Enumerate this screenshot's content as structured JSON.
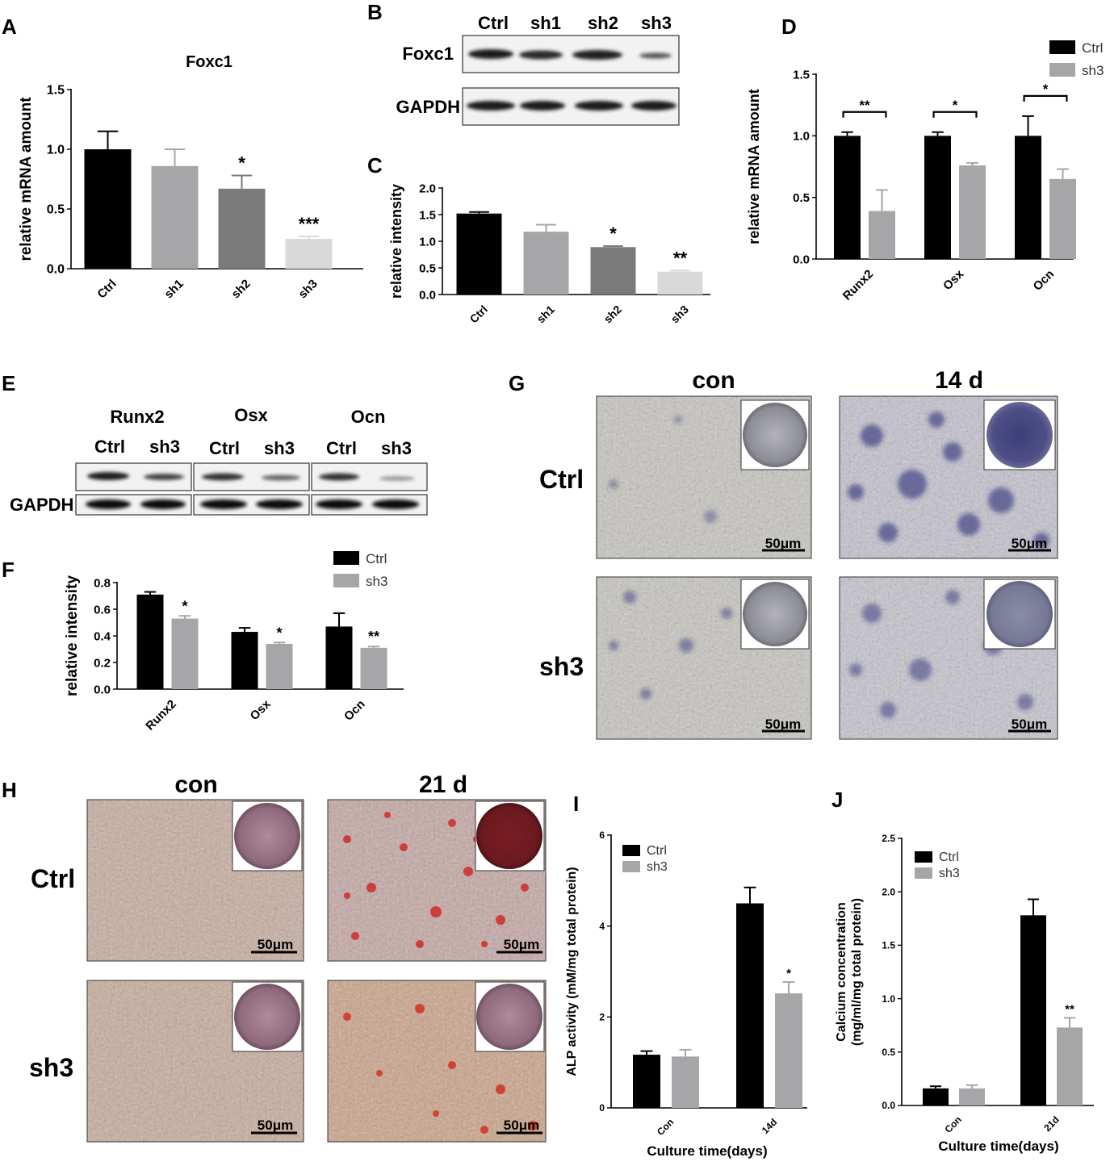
{
  "panel_letters": [
    "A",
    "B",
    "C",
    "D",
    "E",
    "F",
    "G",
    "H",
    "I",
    "J"
  ],
  "colors": {
    "ctrl": "#000000",
    "sh3": "#a6a6a8",
    "sh1": "#a6a6a8",
    "sh2": "#7a7a7a",
    "sh3_light": "#d9d9d9"
  },
  "blot_B": {
    "lanes": [
      "Ctrl",
      "sh1",
      "sh2",
      "sh3"
    ],
    "rows": [
      "Foxc1",
      "GAPDH"
    ]
  },
  "blot_E": {
    "groups": [
      "Runx2",
      "Osx",
      "Ocn"
    ],
    "lanes": [
      "Ctrl",
      "sh3"
    ],
    "rows": [
      "GAPDH"
    ]
  },
  "panel_G": {
    "columns": [
      "con",
      "14 d"
    ],
    "rows": [
      "Ctrl",
      "sh3"
    ],
    "scale_bar": "50μm"
  },
  "panel_H": {
    "columns": [
      "con",
      "21 d"
    ],
    "rows": [
      "Ctrl",
      "sh3"
    ],
    "scale_bar": "50μm"
  },
  "chart_data": [
    {
      "panel": "A",
      "type": "bar",
      "title": "Foxc1",
      "ylabel": "relative mRNA amount",
      "xlabel": "",
      "categories": [
        "Ctrl",
        "sh1",
        "sh2",
        "sh3"
      ],
      "values": [
        1.0,
        0.86,
        0.67,
        0.25
      ],
      "errors": [
        0.15,
        0.14,
        0.11,
        0.02
      ],
      "colors": [
        "#000000",
        "#a6a6a8",
        "#7a7a7a",
        "#d9d9d9"
      ],
      "annotations": [
        "",
        "",
        "*",
        "***"
      ],
      "ylim": [
        0,
        1.5
      ],
      "yticks": [
        "0.0",
        "0.5",
        "1.0",
        "1.5"
      ],
      "grid": false
    },
    {
      "panel": "C",
      "type": "bar",
      "title": "",
      "ylabel": "relative intensity",
      "xlabel": "",
      "categories": [
        "Ctrl",
        "sh1",
        "sh2",
        "sh3"
      ],
      "values": [
        1.52,
        1.18,
        0.89,
        0.43
      ],
      "errors": [
        0.03,
        0.13,
        0.02,
        0.02
      ],
      "colors": [
        "#000000",
        "#a6a6a8",
        "#7a7a7a",
        "#d9d9d9"
      ],
      "annotations": [
        "",
        "",
        "*",
        "**"
      ],
      "ylim": [
        0,
        2.0
      ],
      "yticks": [
        "0.0",
        "0.5",
        "1.0",
        "1.5",
        "2.0"
      ],
      "grid": false
    },
    {
      "panel": "D",
      "type": "bar",
      "title": "",
      "ylabel": "relative mRNA amount",
      "xlabel": "",
      "categories": [
        "Runx2",
        "Osx",
        "Ocn"
      ],
      "series": [
        {
          "name": "Ctrl",
          "values": [
            1.0,
            1.0,
            1.0
          ],
          "errors": [
            0.03,
            0.03,
            0.16
          ]
        },
        {
          "name": "sh3",
          "values": [
            0.39,
            0.76,
            0.65
          ],
          "errors": [
            0.17,
            0.02,
            0.08
          ]
        }
      ],
      "brackets": [
        "**",
        "*",
        "*"
      ],
      "annotations_sh3": [],
      "ylim": [
        0,
        1.5
      ],
      "yticks": [
        "0.0",
        "0.5",
        "1.0",
        "1.5"
      ],
      "legend": "top-right",
      "grid": false
    },
    {
      "panel": "F",
      "type": "bar",
      "title": "",
      "ylabel": "relative intensity",
      "xlabel": "",
      "categories": [
        "Runx2",
        "Osx",
        "Ocn"
      ],
      "series": [
        {
          "name": "Ctrl",
          "values": [
            0.71,
            0.43,
            0.47
          ],
          "errors": [
            0.02,
            0.03,
            0.1
          ]
        },
        {
          "name": "sh3",
          "values": [
            0.53,
            0.34,
            0.31
          ],
          "errors": [
            0.02,
            0.01,
            0.01
          ]
        }
      ],
      "annotations_sh3": [
        "*",
        "*",
        "**"
      ],
      "ylim": [
        0,
        0.8
      ],
      "yticks": [
        "0.0",
        "0.2",
        "0.4",
        "0.6",
        "0.8"
      ],
      "legend": "top-right",
      "grid": false
    },
    {
      "panel": "I",
      "type": "bar",
      "title": "",
      "ylabel": "ALP activity (mM/mg total protein)",
      "xlabel": "Culture time(days)",
      "categories": [
        "Con",
        "14d"
      ],
      "series": [
        {
          "name": "Ctrl",
          "values": [
            1.17,
            4.5
          ],
          "errors": [
            0.08,
            0.35
          ]
        },
        {
          "name": "sh3",
          "values": [
            1.13,
            2.52
          ],
          "errors": [
            0.15,
            0.25
          ]
        }
      ],
      "annotations_sh3": [
        "",
        "*"
      ],
      "ylim": [
        0,
        6
      ],
      "yticks": [
        "0",
        "2",
        "4",
        "6"
      ],
      "legend": "top-left",
      "grid": false
    },
    {
      "panel": "J",
      "type": "bar",
      "title": "",
      "ylabel": "Calcium concentration (mg/ml/mg total protein)",
      "xlabel": "Culture time(days)",
      "categories": [
        "Con",
        "21d"
      ],
      "series": [
        {
          "name": "Ctrl",
          "values": [
            0.16,
            1.78
          ],
          "errors": [
            0.02,
            0.15
          ]
        },
        {
          "name": "sh3",
          "values": [
            0.16,
            0.73
          ],
          "errors": [
            0.03,
            0.09
          ]
        }
      ],
      "annotations_sh3": [
        "",
        "**"
      ],
      "ylim": [
        0,
        2.5
      ],
      "yticks": [
        "0.0",
        "0.5",
        "1.0",
        "1.5",
        "2.0",
        "2.5"
      ],
      "legend": "top-left",
      "grid": false
    }
  ]
}
